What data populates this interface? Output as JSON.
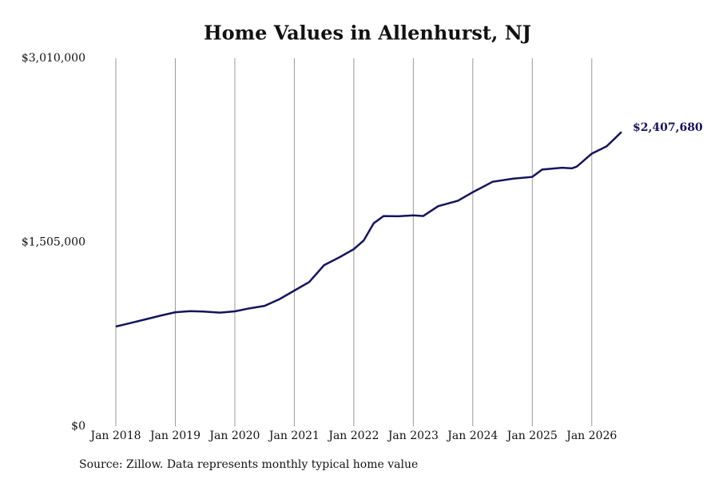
{
  "chart_data": {
    "type": "line",
    "title": "Home Values in Allenhurst, NJ",
    "source": "Source: Zillow. Data represents monthly typical home value",
    "x": [
      "2018-01",
      "2018-04",
      "2018-07",
      "2018-10",
      "2019-01",
      "2019-04",
      "2019-07",
      "2019-10",
      "2020-01",
      "2020-04",
      "2020-07",
      "2020-10",
      "2021-01",
      "2021-04",
      "2021-07",
      "2021-10",
      "2022-01",
      "2022-03",
      "2022-05",
      "2022-07",
      "2022-10",
      "2023-01",
      "2023-03",
      "2023-06",
      "2023-10",
      "2024-01",
      "2024-05",
      "2024-09",
      "2025-01",
      "2025-03",
      "2025-07",
      "2025-09",
      "2025-10",
      "2026-01",
      "2026-04",
      "2026-07"
    ],
    "series": [
      {
        "color": "#14145a",
        "values": [
          816000,
          845000,
          875000,
          905000,
          933000,
          942000,
          938000,
          930000,
          940000,
          965000,
          985000,
          1040000,
          1110000,
          1180000,
          1318000,
          1380000,
          1449000,
          1520000,
          1660000,
          1720000,
          1718000,
          1725000,
          1720000,
          1800000,
          1845000,
          1915000,
          2000000,
          2025000,
          2040000,
          2100000,
          2115000,
          2110000,
          2125000,
          2230000,
          2290000,
          2407680
        ],
        "value_labels": [
          null,
          null,
          null,
          null,
          null,
          null,
          null,
          null,
          null,
          null,
          null,
          null,
          null,
          null,
          null,
          null,
          null,
          null,
          null,
          null,
          null,
          null,
          null,
          null,
          null,
          null,
          null,
          null,
          null,
          null,
          null,
          null,
          null,
          null,
          null,
          "$2,407,680"
        ]
      }
    ],
    "xlim": [
      "2018-01",
      "2026-07"
    ],
    "xticks": [
      {
        "value": "2018-01",
        "label": "Jan 2018"
      },
      {
        "value": "2019-01",
        "label": "Jan 2019"
      },
      {
        "value": "2020-01",
        "label": "Jan 2020"
      },
      {
        "value": "2021-01",
        "label": "Jan 2021"
      },
      {
        "value": "2022-01",
        "label": "Jan 2022"
      },
      {
        "value": "2023-01",
        "label": "Jan 2023"
      },
      {
        "value": "2024-01",
        "label": "Jan 2024"
      },
      {
        "value": "2025-01",
        "label": "Jan 2025"
      },
      {
        "value": "2026-01",
        "label": "Jan 2026"
      }
    ],
    "ylim": [
      0,
      3010000
    ],
    "yticks": [
      {
        "value": 0,
        "label": "$0"
      },
      {
        "value": 1505000,
        "label": "$1,505,000"
      },
      {
        "value": 3010000,
        "label": "$3,010,000"
      }
    ],
    "grid": "x"
  }
}
